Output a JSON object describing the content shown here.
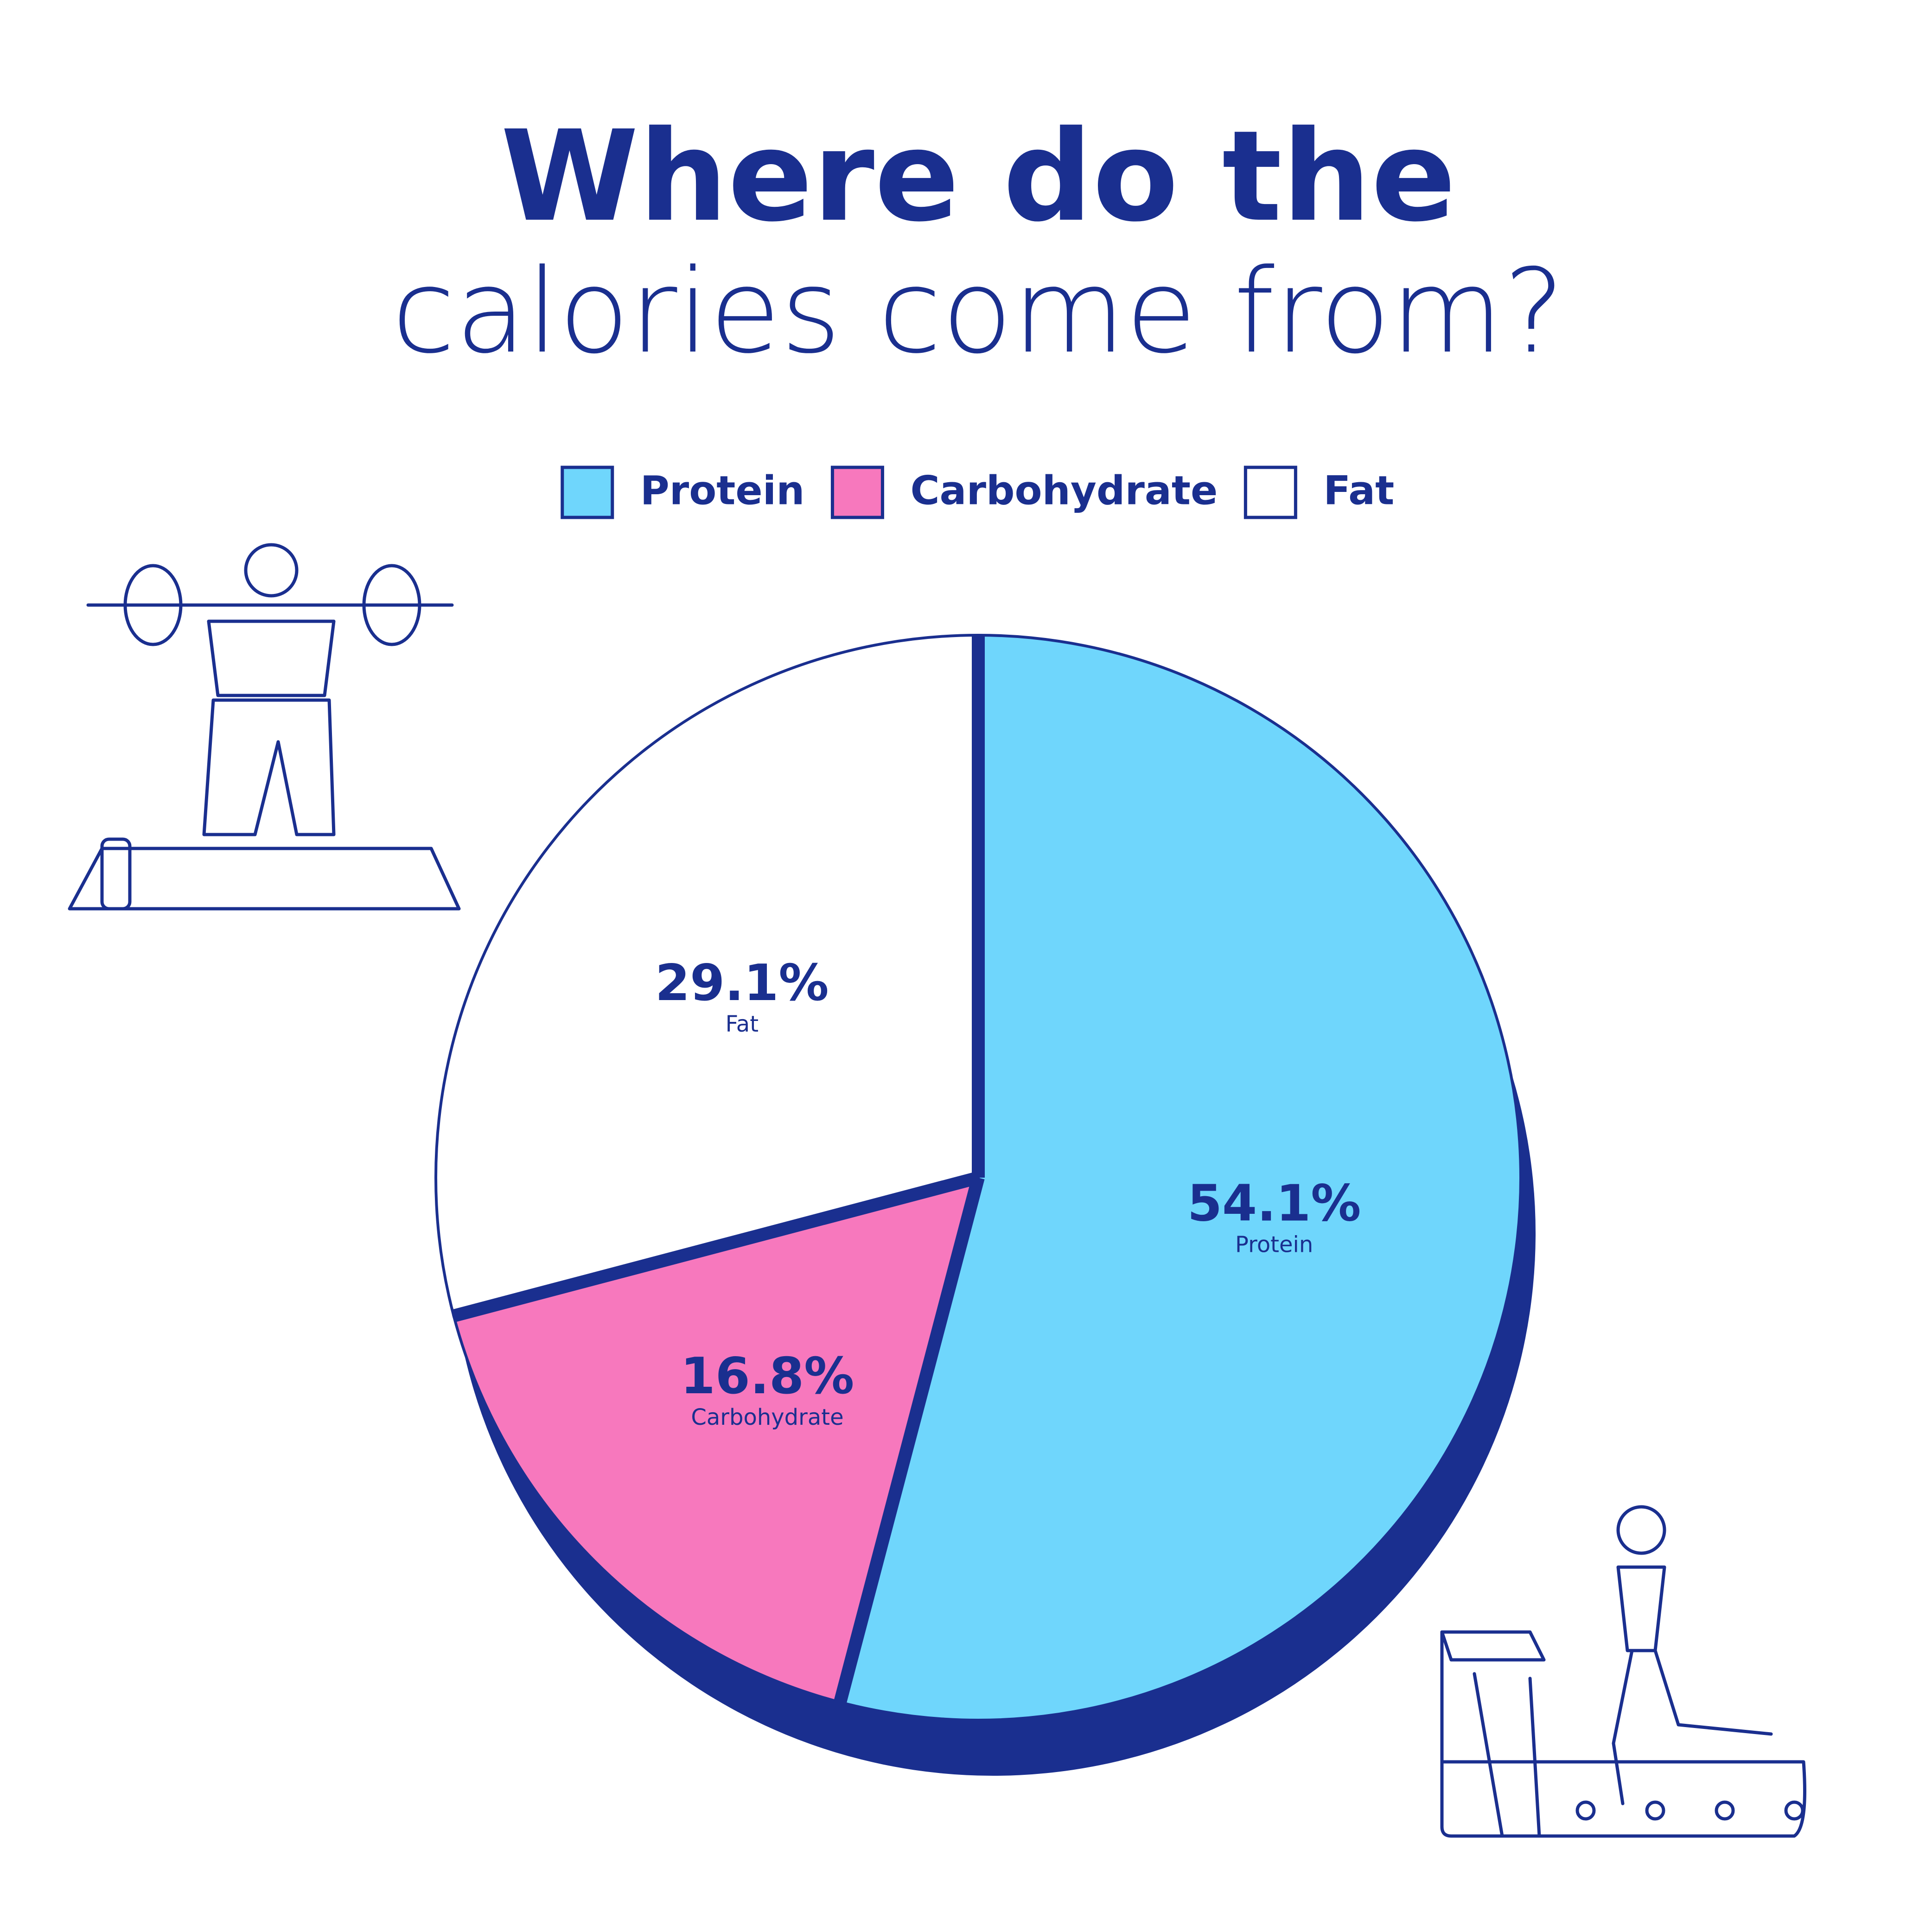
{
  "chart_data": {
    "type": "pie",
    "title": "Where do the",
    "subtitle": "calories come from?",
    "categories": [
      "Protein",
      "Carbohydrate",
      "Fat"
    ],
    "values": [
      54.1,
      16.8,
      29.1
    ],
    "value_labels": [
      "54.1%",
      "16.8%",
      "29.1%"
    ],
    "colors": [
      "#6fd6fc",
      "#f778bd",
      "#ffffff"
    ],
    "legend": "top"
  }
}
